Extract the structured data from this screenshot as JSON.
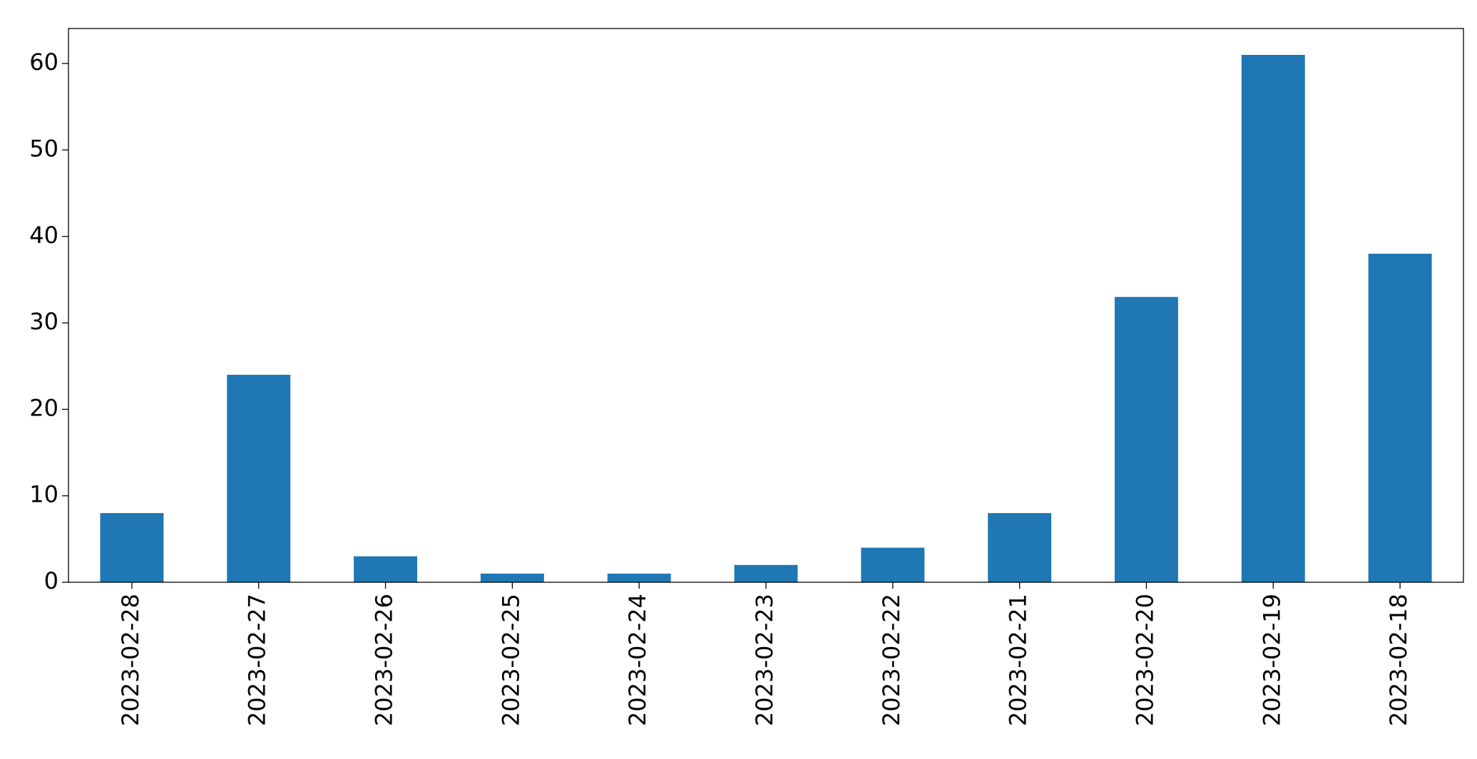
{
  "chart_data": {
    "type": "bar",
    "categories": [
      "2023-02-28",
      "2023-02-27",
      "2023-02-26",
      "2023-02-25",
      "2023-02-24",
      "2023-02-23",
      "2023-02-22",
      "2023-02-21",
      "2023-02-20",
      "2023-02-19",
      "2023-02-18"
    ],
    "values": [
      8,
      24,
      3,
      1,
      1,
      2,
      4,
      8,
      33,
      61,
      38
    ],
    "color": "#1f77b4",
    "ylim": [
      0,
      64.05
    ],
    "yticks": [
      0,
      10,
      20,
      30,
      40,
      50,
      60
    ],
    "grid": false
  }
}
